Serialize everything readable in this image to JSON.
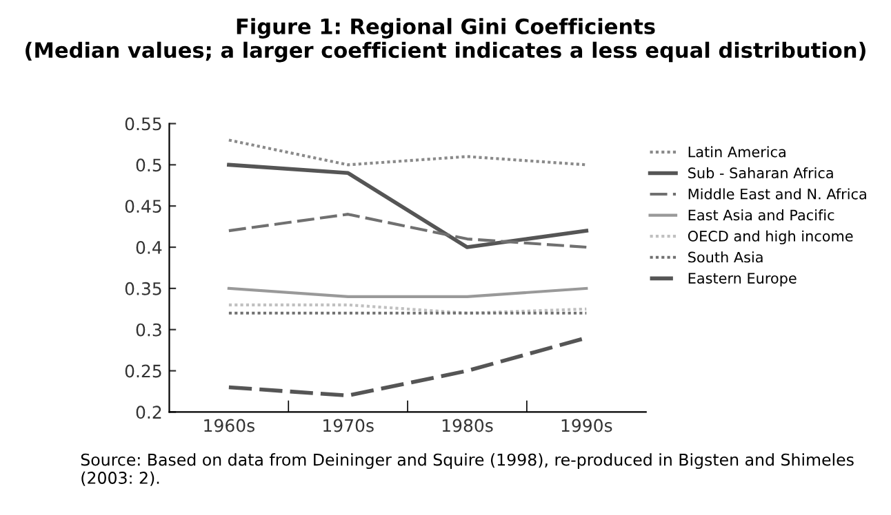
{
  "chart_data": {
    "type": "line",
    "title": "Figure 1: Regional Gini Coefficients\n(Median values; a larger coefficient indicates a less equal distribution)",
    "categories": [
      "1960s",
      "1970s",
      "1980s",
      "1990s"
    ],
    "series": [
      {
        "name": "Latin America",
        "color": "#8a8a8a",
        "line_style": "dotted",
        "values": [
          0.53,
          0.5,
          0.51,
          0.5
        ]
      },
      {
        "name": "Sub - Saharan Africa",
        "color": "#555555",
        "line_style": "solid",
        "values": [
          0.5,
          0.49,
          0.4,
          0.42
        ]
      },
      {
        "name": "Middle East and N. Africa",
        "color": "#707070",
        "line_style": "dashed",
        "values": [
          0.42,
          0.44,
          0.41,
          0.4
        ]
      },
      {
        "name": "East Asia and Pacific",
        "color": "#999999",
        "line_style": "solid",
        "values": [
          0.35,
          0.34,
          0.34,
          0.35
        ]
      },
      {
        "name": "OECD and high income",
        "color": "#c0c0c0",
        "line_style": "dotted",
        "values": [
          0.33,
          0.33,
          0.32,
          0.325
        ]
      },
      {
        "name": "South Asia",
        "color": "#707070",
        "line_style": "dotted",
        "values": [
          0.32,
          0.32,
          0.32,
          0.32
        ]
      },
      {
        "name": "Eastern Europe",
        "color": "#555555",
        "line_style": "dashed",
        "values": [
          0.23,
          0.22,
          0.25,
          0.29
        ]
      }
    ],
    "ylim": [
      0.2,
      0.55
    ],
    "yticks": [
      0.2,
      0.25,
      0.3,
      0.35,
      0.4,
      0.45,
      0.5,
      0.55
    ],
    "grid": false,
    "legend": "right",
    "marker": "none",
    "annotations": [
      "Source: Based on data from Deininger and Squire (1998), re-produced in Bigsten and Shimeles (2003: 2)."
    ]
  }
}
